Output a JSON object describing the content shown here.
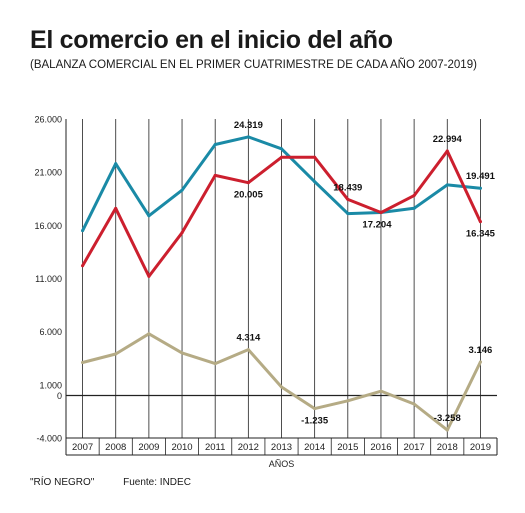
{
  "chart_data": {
    "type": "line",
    "title": "El comercio en el inicio del año",
    "subtitle": "(BALANZA COMERCIAL EN EL PRIMER CUATRIMESTRE DE CADA AÑO 2007-2019)",
    "xlabel": "AÑOS",
    "ylabel": "",
    "x": [
      "2007",
      "2008",
      "2009",
      "2010",
      "2011",
      "2012",
      "2013",
      "2014",
      "2015",
      "2016",
      "2017",
      "2018",
      "2019"
    ],
    "y_ticks": [
      {
        "value": 26000,
        "label": "26.000"
      },
      {
        "value": 21000,
        "label": "21.000"
      },
      {
        "value": 16000,
        "label": "16.000"
      },
      {
        "value": 11000,
        "label": "11.000"
      },
      {
        "value": 6000,
        "label": "6.000"
      },
      {
        "value": 1000,
        "label": "1.000"
      },
      {
        "value": 0,
        "label": "0"
      },
      {
        "value": -4000,
        "label": "-4.000"
      }
    ],
    "ylim": [
      -4000,
      26000
    ],
    "grid": "vertical",
    "series": [
      {
        "key": "blue",
        "color": "#1a8aa6",
        "values": [
          15500,
          21800,
          16900,
          19300,
          23600,
          24319,
          23200,
          20100,
          17100,
          17204,
          17600,
          19800,
          19491
        ]
      },
      {
        "key": "red",
        "color": "#cc1f2e",
        "values": [
          12200,
          17600,
          11200,
          15300,
          20700,
          20005,
          22400,
          22400,
          18439,
          17204,
          18800,
          22994,
          16345
        ]
      },
      {
        "key": "olive",
        "color": "#b5ab85",
        "values": [
          3100,
          3900,
          5800,
          4000,
          3000,
          4314,
          800,
          -1235,
          -500,
          400,
          -800,
          -3258,
          3146
        ]
      }
    ],
    "annotations": [
      {
        "text": "24.319",
        "series": "blue",
        "index": 5,
        "pos": "above"
      },
      {
        "text": "20.005",
        "series": "red",
        "index": 5,
        "pos": "below"
      },
      {
        "text": "18.439",
        "series": "red",
        "index": 8,
        "pos": "above"
      },
      {
        "text": "17.204",
        "series": "blue",
        "index": 9,
        "pos": "below-left"
      },
      {
        "text": "22.994",
        "series": "red",
        "index": 11,
        "pos": "above"
      },
      {
        "text": "19.491",
        "series": "blue",
        "index": 12,
        "pos": "above"
      },
      {
        "text": "16.345",
        "series": "red",
        "index": 12,
        "pos": "below"
      },
      {
        "text": "4.314",
        "series": "olive",
        "index": 5,
        "pos": "above"
      },
      {
        "text": "-1.235",
        "series": "olive",
        "index": 7,
        "pos": "below"
      },
      {
        "text": "-3.258",
        "series": "olive",
        "index": 11,
        "pos": "above"
      },
      {
        "text": "3.146",
        "series": "olive",
        "index": 12,
        "pos": "above"
      }
    ]
  },
  "footer": {
    "credit": "\"RÍO NEGRO\"",
    "source": "Fuente: INDEC"
  }
}
